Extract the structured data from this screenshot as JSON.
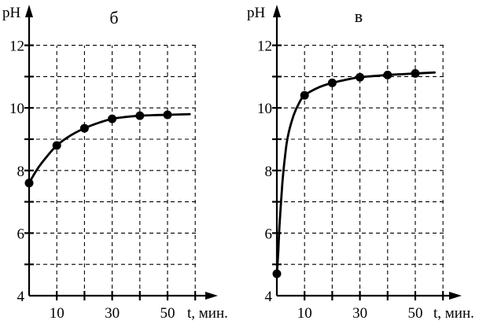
{
  "chart_data": [
    {
      "type": "line",
      "panel_label": "б",
      "ylabel": "pH",
      "xlabel": "t, мин.",
      "x_ticks": [
        10,
        30,
        50
      ],
      "y_ticks": [
        4,
        6,
        8,
        10,
        12
      ],
      "xlim": [
        0,
        60
      ],
      "ylim": [
        4,
        13
      ],
      "grid": true,
      "points": [
        {
          "x": 0,
          "y": 7.6
        },
        {
          "x": 10,
          "y": 8.8
        },
        {
          "x": 20,
          "y": 9.35
        },
        {
          "x": 30,
          "y": 9.65
        },
        {
          "x": 40,
          "y": 9.75
        },
        {
          "x": 50,
          "y": 9.78
        }
      ],
      "curve": [
        {
          "x": 0,
          "y": 7.6
        },
        {
          "x": 3,
          "y": 8.05
        },
        {
          "x": 6,
          "y": 8.4
        },
        {
          "x": 10,
          "y": 8.8
        },
        {
          "x": 15,
          "y": 9.12
        },
        {
          "x": 20,
          "y": 9.35
        },
        {
          "x": 25,
          "y": 9.52
        },
        {
          "x": 30,
          "y": 9.65
        },
        {
          "x": 35,
          "y": 9.71
        },
        {
          "x": 40,
          "y": 9.75
        },
        {
          "x": 45,
          "y": 9.77
        },
        {
          "x": 50,
          "y": 9.78
        },
        {
          "x": 58,
          "y": 9.8
        }
      ]
    },
    {
      "type": "line",
      "panel_label": "в",
      "ylabel": "pH",
      "xlabel": "t, мин.",
      "x_ticks": [
        10,
        30,
        50
      ],
      "y_ticks": [
        4,
        6,
        8,
        10,
        12
      ],
      "xlim": [
        0,
        60
      ],
      "ylim": [
        4,
        13
      ],
      "grid": true,
      "points": [
        {
          "x": 0,
          "y": 4.7
        },
        {
          "x": 10,
          "y": 10.4
        },
        {
          "x": 20,
          "y": 10.8
        },
        {
          "x": 30,
          "y": 10.98
        },
        {
          "x": 40,
          "y": 11.05
        },
        {
          "x": 50,
          "y": 11.1
        }
      ],
      "curve": [
        {
          "x": 0,
          "y": 4.7
        },
        {
          "x": 0.5,
          "y": 5.4
        },
        {
          "x": 1,
          "y": 6.3
        },
        {
          "x": 2,
          "y": 7.6
        },
        {
          "x": 3,
          "y": 8.5
        },
        {
          "x": 4,
          "y": 9.1
        },
        {
          "x": 6,
          "y": 9.75
        },
        {
          "x": 8,
          "y": 10.15
        },
        {
          "x": 10,
          "y": 10.4
        },
        {
          "x": 15,
          "y": 10.65
        },
        {
          "x": 20,
          "y": 10.8
        },
        {
          "x": 25,
          "y": 10.9
        },
        {
          "x": 30,
          "y": 10.98
        },
        {
          "x": 40,
          "y": 11.05
        },
        {
          "x": 50,
          "y": 11.1
        },
        {
          "x": 57,
          "y": 11.13
        }
      ]
    }
  ]
}
